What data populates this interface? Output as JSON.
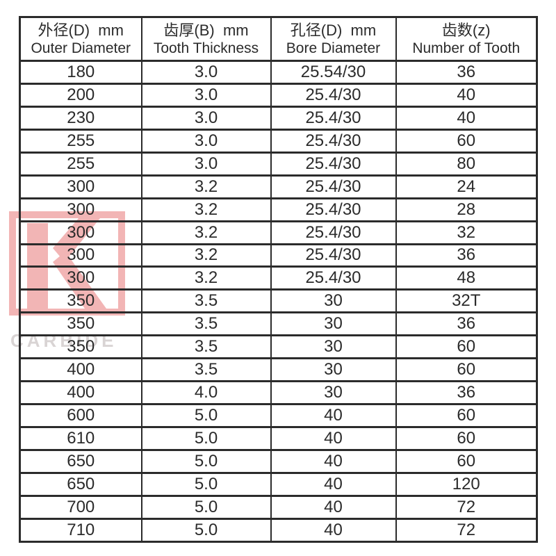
{
  "page": {
    "background_color": "#ffffff",
    "border_color": "#2b2b2b",
    "text_color": "#2b2b2b"
  },
  "watermark": {
    "logo_icon": "k-monogram-icon",
    "brand_text": "CARBIDE",
    "logo_color": "#f2b5b5",
    "text_color": "#d9d4d4"
  },
  "table": {
    "columns": [
      {
        "zh": "外径(D)  mm",
        "en": "Outer Diameter"
      },
      {
        "zh": "齿厚(B)  mm",
        "en": "Tooth Thickness"
      },
      {
        "zh": "孔径(D)  mm",
        "en": "Bore Diameter"
      },
      {
        "zh": "齿数(z)",
        "en": "Number of Tooth"
      }
    ]
  },
  "chart_data": {
    "type": "table",
    "title": "",
    "columns": [
      "外径(D) mm Outer Diameter",
      "齿厚(B) mm Tooth Thickness",
      "孔径(D) mm Bore Diameter",
      "齿数(z) Number of Tooth"
    ],
    "rows": [
      [
        "180",
        "3.0",
        "25.54/30",
        "36"
      ],
      [
        "200",
        "3.0",
        "25.4/30",
        "40"
      ],
      [
        "230",
        "3.0",
        "25.4/30",
        "40"
      ],
      [
        "255",
        "3.0",
        "25.4/30",
        "60"
      ],
      [
        "255",
        "3.0",
        "25.4/30",
        "80"
      ],
      [
        "300",
        "3.2",
        "25.4/30",
        "24"
      ],
      [
        "300",
        "3.2",
        "25.4/30",
        "28"
      ],
      [
        "300",
        "3.2",
        "25.4/30",
        "32"
      ],
      [
        "300",
        "3.2",
        "25.4/30",
        "36"
      ],
      [
        "300",
        "3.2",
        "25.4/30",
        "48"
      ],
      [
        "350",
        "3.5",
        "30",
        "32T"
      ],
      [
        "350",
        "3.5",
        "30",
        "36"
      ],
      [
        "350",
        "3.5",
        "30",
        "60"
      ],
      [
        "400",
        "3.5",
        "30",
        "60"
      ],
      [
        "400",
        "4.0",
        "30",
        "36"
      ],
      [
        "600",
        "5.0",
        "40",
        "60"
      ],
      [
        "610",
        "5.0",
        "40",
        "60"
      ],
      [
        "650",
        "5.0",
        "40",
        "60"
      ],
      [
        "650",
        "5.0",
        "40",
        "120"
      ],
      [
        "700",
        "5.0",
        "40",
        "72"
      ],
      [
        "710",
        "5.0",
        "40",
        "72"
      ]
    ]
  }
}
